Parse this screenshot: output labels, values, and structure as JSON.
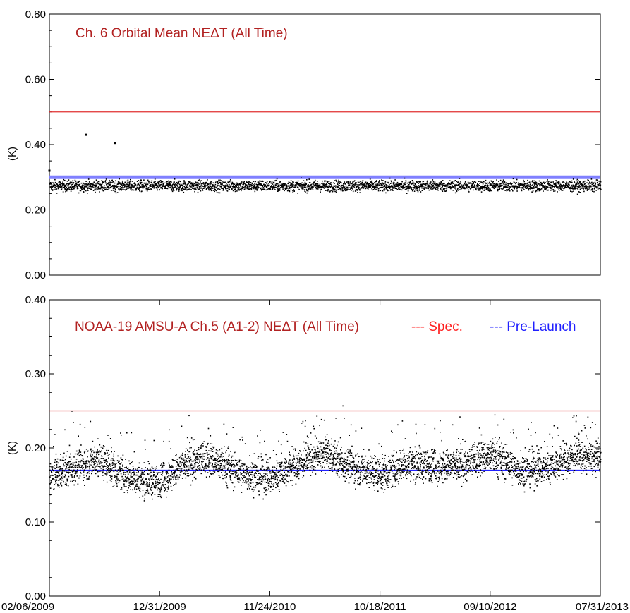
{
  "chart_data": [
    {
      "type": "scatter",
      "title": "Ch. 6 Orbital Mean  NEΔT  (All Time)",
      "title_color": "#b22222",
      "ylabel": "(K)",
      "ylim": [
        0.0,
        0.8
      ],
      "yticks": [
        "0.00",
        "0.20",
        "0.40",
        "0.60",
        "0.80"
      ],
      "xlim": [
        "2009-02-06",
        "2013-07-31"
      ],
      "x_tick_labels_visible": false,
      "reference_lines": [
        {
          "name": "Spec.",
          "y": 0.5,
          "color": "#e03030"
        },
        {
          "name": "Pre-Launch",
          "y": 0.3,
          "color": "#8080ff"
        }
      ],
      "series": [
        {
          "color": "#000000",
          "marker": "dot",
          "baseline_mean": 0.275,
          "baseline_spread": 0.012,
          "x": [
            "2009-02-06",
            "2009-05-25",
            "2009-08-20",
            "2009-11-10",
            "2010-03-01",
            "2010-07-15",
            "2010-12-01",
            "2011-05-01",
            "2011-10-01",
            "2012-03-01",
            "2012-08-01",
            "2013-01-01",
            "2013-07-31"
          ],
          "y": [
            0.32,
            0.43,
            0.405,
            0.27,
            0.275,
            0.28,
            0.27,
            0.278,
            0.272,
            0.276,
            0.27,
            0.274,
            0.27
          ]
        }
      ]
    },
    {
      "type": "scatter",
      "title": "NOAA-19 AMSU-A Ch.5 (A1-2) NEΔT  (All Time)",
      "title_color": "#b22222",
      "ylabel": "(K)",
      "ylim": [
        0.0,
        0.4
      ],
      "yticks": [
        "0.00",
        "0.10",
        "0.20",
        "0.30",
        "0.40"
      ],
      "xlim": [
        "2009-02-06",
        "2013-07-31"
      ],
      "x_tick_labels": [
        "02/06/2009",
        "12/31/2009",
        "11/24/2010",
        "10/18/2011",
        "09/10/2012",
        "07/31/2013"
      ],
      "legend": {
        "placement": "top-right",
        "entries": [
          {
            "label": "--- Spec.",
            "color": "#ff2020"
          },
          {
            "label": "--- Pre-Launch",
            "color": "#2020ff"
          }
        ]
      },
      "reference_lines": [
        {
          "name": "Spec.",
          "y": 0.25,
          "color": "#e03030"
        },
        {
          "name": "Pre-Launch",
          "y": 0.17,
          "color": "#2020ff"
        }
      ],
      "series": [
        {
          "color": "#000000",
          "marker": "dot",
          "x": [
            "2009-02-06",
            "2009-04-15",
            "2009-07-01",
            "2009-10-01",
            "2009-12-31",
            "2010-03-15",
            "2010-06-01",
            "2010-09-01",
            "2010-11-24",
            "2011-02-15",
            "2011-05-01",
            "2011-08-01",
            "2011-10-18",
            "2012-01-15",
            "2012-04-01",
            "2012-07-01",
            "2012-09-10",
            "2012-12-01",
            "2013-03-01",
            "2013-05-15",
            "2013-07-31"
          ],
          "y": [
            0.16,
            0.175,
            0.185,
            0.16,
            0.155,
            0.178,
            0.185,
            0.165,
            0.16,
            0.18,
            0.192,
            0.175,
            0.165,
            0.18,
            0.175,
            0.178,
            0.192,
            0.17,
            0.175,
            0.19,
            0.185
          ]
        }
      ]
    }
  ]
}
